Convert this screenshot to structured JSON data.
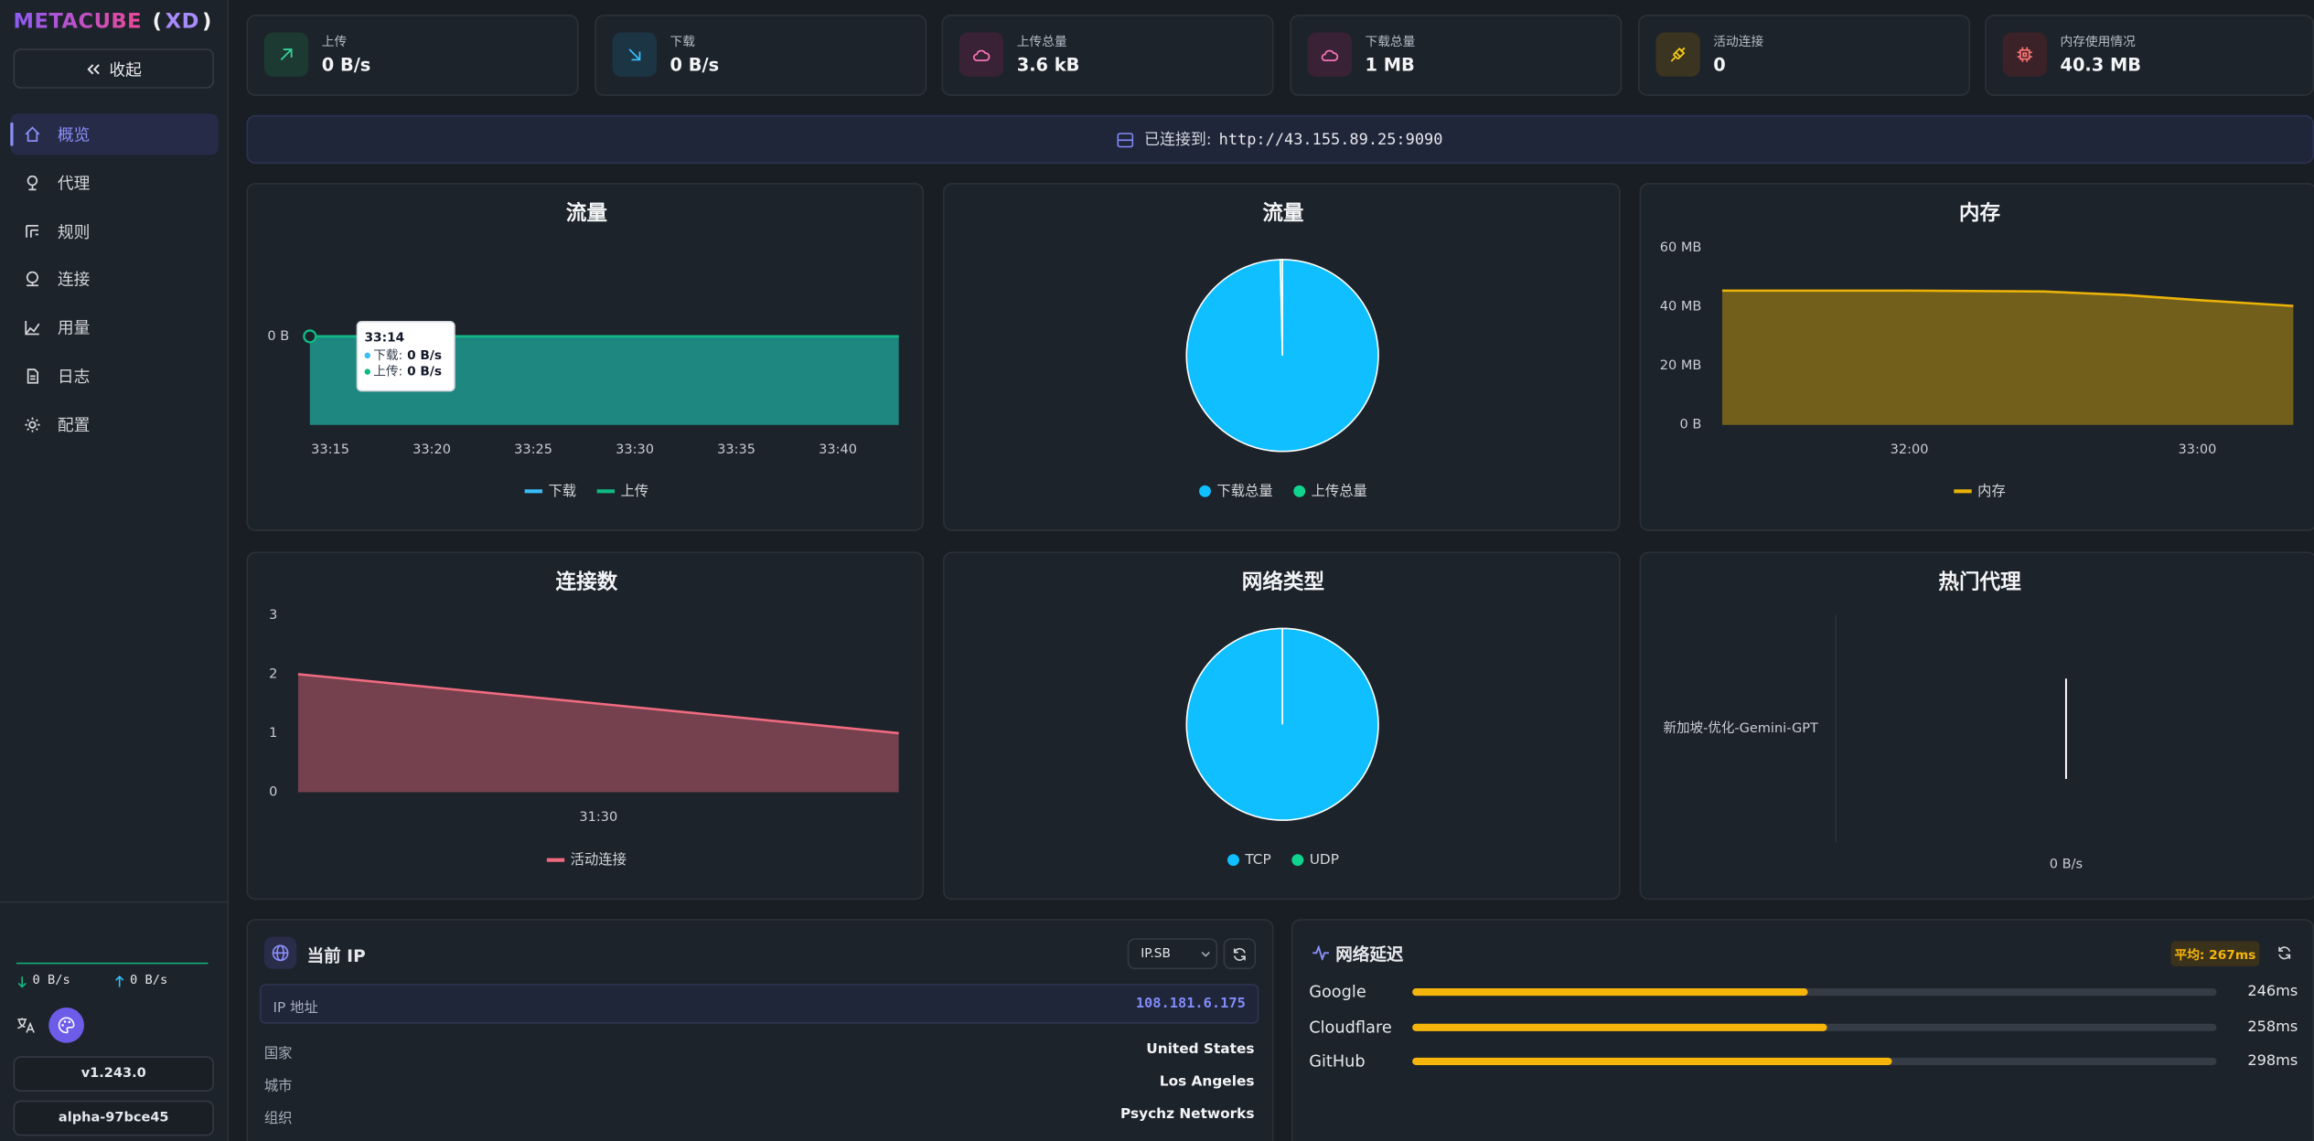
{
  "sidebar": {
    "brand": [
      "METACUBE",
      "(",
      "XD",
      ")"
    ],
    "collapse": "收起",
    "nav": [
      "概览",
      "代理",
      "规则",
      "连接",
      "用量",
      "日志",
      "配置"
    ],
    "active_nav": 0,
    "speed_down": "0 B/s",
    "speed_up": "0 B/s",
    "version": "v1.243.0",
    "build": "alpha-97bce45"
  },
  "stats": [
    {
      "label": "上传",
      "value": "0 B/s"
    },
    {
      "label": "下载",
      "value": "0 B/s"
    },
    {
      "label": "上传总量",
      "value": "3.6 kB"
    },
    {
      "label": "下载总量",
      "value": "1 MB"
    },
    {
      "label": "活动连接",
      "value": "0"
    },
    {
      "label": "内存使用情况",
      "value": "40.3 MB"
    }
  ],
  "connection": {
    "label": "已连接到:",
    "url": "http://43.155.89.25:9090"
  },
  "chart_data": [
    {
      "type": "area",
      "title": "流量",
      "x": [
        1994,
        2023
      ],
      "xlim": [
        1994,
        2023
      ],
      "xticks": [
        {
          "value": 1995,
          "label": "33:15"
        },
        {
          "value": 2000,
          "label": "33:20"
        },
        {
          "value": 2005,
          "label": "33:25"
        },
        {
          "value": 2010,
          "label": "33:30"
        },
        {
          "value": 2015,
          "label": "33:35"
        },
        {
          "value": 2020,
          "label": "33:40"
        }
      ],
      "ylim": [
        -1,
        1
      ],
      "yticks": [
        {
          "value": 0,
          "label": "0 B"
        }
      ],
      "grid": false,
      "series": [
        {
          "name": "下载",
          "color": "#38bdf8",
          "values": [
            0,
            0
          ]
        },
        {
          "name": "上传",
          "color": "#10b981",
          "values": [
            0,
            0
          ]
        }
      ],
      "tooltip": {
        "title": "33:14",
        "rows": [
          {
            "label": "下载:",
            "value": "0 B/s"
          },
          {
            "label": "上传:",
            "value": "0 B/s"
          }
        ]
      }
    },
    {
      "type": "pie",
      "title": "流量",
      "categories": [
        "下载总量",
        "上传总量"
      ],
      "values": [
        1000,
        3.6
      ],
      "colors": [
        "#0fbfff",
        "#10d48e"
      ]
    },
    {
      "type": "area",
      "title": "内存",
      "x": [
        1881,
        1900,
        1920,
        1948,
        1965,
        1980,
        2000
      ],
      "xlim": [
        1881,
        2000
      ],
      "xticks": [
        {
          "value": 1920,
          "label": "32:00"
        },
        {
          "value": 1980,
          "label": "33:00"
        }
      ],
      "ylim": [
        0,
        60
      ],
      "yticks": [
        {
          "value": 0,
          "label": "0 B"
        },
        {
          "value": 20,
          "label": "20 MB"
        },
        {
          "value": 40,
          "label": "40 MB"
        },
        {
          "value": 60,
          "label": "60 MB"
        }
      ],
      "grid": false,
      "series": [
        {
          "name": "内存",
          "color": "#eab308",
          "values": [
            45.5,
            45.5,
            45.5,
            45.2,
            44,
            42.3,
            40.3
          ]
        }
      ]
    },
    {
      "type": "area",
      "title": "连接数",
      "x": [
        1875,
        1905
      ],
      "xlim": [
        1875,
        1905
      ],
      "xticks": [
        {
          "value": 1890,
          "label": "31:30"
        }
      ],
      "ylim": [
        0,
        3
      ],
      "yticks": [
        0,
        1,
        2,
        3
      ],
      "grid": false,
      "series": [
        {
          "name": "活动连接",
          "color": "#f06b80",
          "values": [
            2,
            1
          ]
        }
      ]
    },
    {
      "type": "pie",
      "title": "网络类型",
      "categories": [
        "TCP",
        "UDP"
      ],
      "values": [
        2,
        0
      ],
      "colors": [
        "#0fbfff",
        "#10d48e"
      ]
    },
    {
      "type": "hbar",
      "title": "热门代理",
      "categories": [
        "新加坡-优化-Gemini-GPT"
      ],
      "values": [
        0
      ],
      "xlim": [
        -1,
        1
      ],
      "xticks": [
        {
          "value": 0,
          "label": "0 B/s"
        }
      ],
      "color": "#ffffff"
    }
  ],
  "ip_panel": {
    "title": "当前 IP",
    "provider": "IP.SB",
    "rows": [
      [
        "IP 地址",
        "108.181.6.175"
      ],
      [
        "国家",
        "United States"
      ],
      [
        "城市",
        "Los Angeles"
      ],
      [
        "组织",
        "Psychz Networks"
      ]
    ]
  },
  "latency": {
    "title": "网络延迟",
    "average": "平均: 267ms",
    "categories": [
      "Google",
      "Cloudflare",
      "GitHub"
    ],
    "values": [
      246,
      258,
      298
    ],
    "value_labels": [
      "246ms",
      "258ms",
      "298ms"
    ],
    "xlim": [
      0,
      500
    ],
    "color": "#f5b50a"
  }
}
